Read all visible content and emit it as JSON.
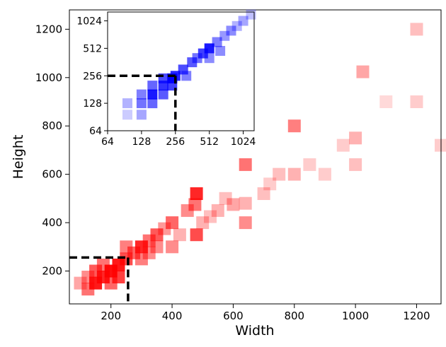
{
  "chart_data": [
    {
      "type": "heatmap",
      "title": "",
      "xlabel": "Width",
      "ylabel": "Height",
      "xlim": [
        64,
        1280
      ],
      "ylim": [
        64,
        1280
      ],
      "x_ticks": [
        200,
        400,
        600,
        800,
        1000,
        1200
      ],
      "y_ticks": [
        200,
        400,
        600,
        800,
        1000,
        1200
      ],
      "color": "#ff0000",
      "threshold": {
        "width": 256,
        "height": 256,
        "style": "dashed",
        "color": "#000000"
      },
      "cells": [
        {
          "x": 100,
          "y": 150,
          "v": 0.35
        },
        {
          "x": 125,
          "y": 125,
          "v": 0.55
        },
        {
          "x": 125,
          "y": 175,
          "v": 0.45
        },
        {
          "x": 150,
          "y": 150,
          "v": 0.9
        },
        {
          "x": 150,
          "y": 200,
          "v": 0.65
        },
        {
          "x": 175,
          "y": 175,
          "v": 0.85
        },
        {
          "x": 175,
          "y": 225,
          "v": 0.55
        },
        {
          "x": 200,
          "y": 200,
          "v": 0.95
        },
        {
          "x": 200,
          "y": 150,
          "v": 0.6
        },
        {
          "x": 225,
          "y": 225,
          "v": 0.9
        },
        {
          "x": 225,
          "y": 175,
          "v": 0.75
        },
        {
          "x": 250,
          "y": 250,
          "v": 0.7
        },
        {
          "x": 250,
          "y": 300,
          "v": 0.5
        },
        {
          "x": 275,
          "y": 275,
          "v": 0.6
        },
        {
          "x": 300,
          "y": 300,
          "v": 0.85
        },
        {
          "x": 300,
          "y": 250,
          "v": 0.5
        },
        {
          "x": 325,
          "y": 325,
          "v": 0.55
        },
        {
          "x": 325,
          "y": 275,
          "v": 0.45
        },
        {
          "x": 350,
          "y": 350,
          "v": 0.65
        },
        {
          "x": 350,
          "y": 300,
          "v": 0.45
        },
        {
          "x": 375,
          "y": 375,
          "v": 0.4
        },
        {
          "x": 400,
          "y": 400,
          "v": 0.6
        },
        {
          "x": 400,
          "y": 300,
          "v": 0.45
        },
        {
          "x": 425,
          "y": 350,
          "v": 0.3
        },
        {
          "x": 450,
          "y": 450,
          "v": 0.45
        },
        {
          "x": 475,
          "y": 475,
          "v": 0.55
        },
        {
          "x": 480,
          "y": 520,
          "v": 0.85
        },
        {
          "x": 480,
          "y": 350,
          "v": 0.7
        },
        {
          "x": 500,
          "y": 400,
          "v": 0.3
        },
        {
          "x": 525,
          "y": 425,
          "v": 0.25
        },
        {
          "x": 550,
          "y": 450,
          "v": 0.3
        },
        {
          "x": 575,
          "y": 500,
          "v": 0.25
        },
        {
          "x": 600,
          "y": 475,
          "v": 0.35
        },
        {
          "x": 640,
          "y": 400,
          "v": 0.45
        },
        {
          "x": 640,
          "y": 640,
          "v": 0.55
        },
        {
          "x": 640,
          "y": 480,
          "v": 0.3
        },
        {
          "x": 700,
          "y": 520,
          "v": 0.25
        },
        {
          "x": 720,
          "y": 560,
          "v": 0.2
        },
        {
          "x": 750,
          "y": 600,
          "v": 0.25
        },
        {
          "x": 800,
          "y": 600,
          "v": 0.3
        },
        {
          "x": 800,
          "y": 800,
          "v": 0.5
        },
        {
          "x": 850,
          "y": 640,
          "v": 0.2
        },
        {
          "x": 900,
          "y": 600,
          "v": 0.2
        },
        {
          "x": 960,
          "y": 720,
          "v": 0.2
        },
        {
          "x": 1000,
          "y": 640,
          "v": 0.25
        },
        {
          "x": 1000,
          "y": 750,
          "v": 0.3
        },
        {
          "x": 1024,
          "y": 1024,
          "v": 0.35
        },
        {
          "x": 1100,
          "y": 900,
          "v": 0.15
        },
        {
          "x": 1200,
          "y": 1200,
          "v": 0.25
        },
        {
          "x": 1200,
          "y": 900,
          "v": 0.2
        },
        {
          "x": 1280,
          "y": 720,
          "v": 0.2
        }
      ]
    },
    {
      "type": "heatmap",
      "title": "",
      "xlabel": "",
      "ylabel": "",
      "scale": "log2",
      "xlim": [
        64,
        1280
      ],
      "ylim": [
        64,
        1280
      ],
      "x_ticks": [
        64,
        128,
        256,
        512,
        1024
      ],
      "y_ticks": [
        64,
        128,
        256,
        512,
        1024
      ],
      "color": "#0000ff",
      "threshold": {
        "width": 256,
        "height": 256,
        "style": "dashed",
        "color": "#000000"
      },
      "cells": [
        {
          "x": 96,
          "y": 96,
          "v": 0.2
        },
        {
          "x": 96,
          "y": 128,
          "v": 0.3
        },
        {
          "x": 128,
          "y": 96,
          "v": 0.35
        },
        {
          "x": 128,
          "y": 128,
          "v": 0.55
        },
        {
          "x": 128,
          "y": 160,
          "v": 0.5
        },
        {
          "x": 160,
          "y": 128,
          "v": 0.6
        },
        {
          "x": 160,
          "y": 160,
          "v": 0.9
        },
        {
          "x": 160,
          "y": 200,
          "v": 0.6
        },
        {
          "x": 200,
          "y": 160,
          "v": 0.65
        },
        {
          "x": 200,
          "y": 200,
          "v": 0.8
        },
        {
          "x": 200,
          "y": 240,
          "v": 0.7
        },
        {
          "x": 240,
          "y": 200,
          "v": 0.75
        },
        {
          "x": 240,
          "y": 240,
          "v": 1.0
        },
        {
          "x": 256,
          "y": 256,
          "v": 0.85
        },
        {
          "x": 300,
          "y": 300,
          "v": 0.7
        },
        {
          "x": 320,
          "y": 256,
          "v": 0.5
        },
        {
          "x": 360,
          "y": 360,
          "v": 0.65
        },
        {
          "x": 400,
          "y": 400,
          "v": 0.55
        },
        {
          "x": 450,
          "y": 450,
          "v": 0.75
        },
        {
          "x": 512,
          "y": 512,
          "v": 0.9
        },
        {
          "x": 512,
          "y": 400,
          "v": 0.45
        },
        {
          "x": 600,
          "y": 600,
          "v": 0.5
        },
        {
          "x": 640,
          "y": 480,
          "v": 0.45
        },
        {
          "x": 700,
          "y": 700,
          "v": 0.4
        },
        {
          "x": 800,
          "y": 800,
          "v": 0.45
        },
        {
          "x": 900,
          "y": 900,
          "v": 0.3
        },
        {
          "x": 1024,
          "y": 1024,
          "v": 0.35
        },
        {
          "x": 1200,
          "y": 1200,
          "v": 0.25
        }
      ]
    }
  ]
}
